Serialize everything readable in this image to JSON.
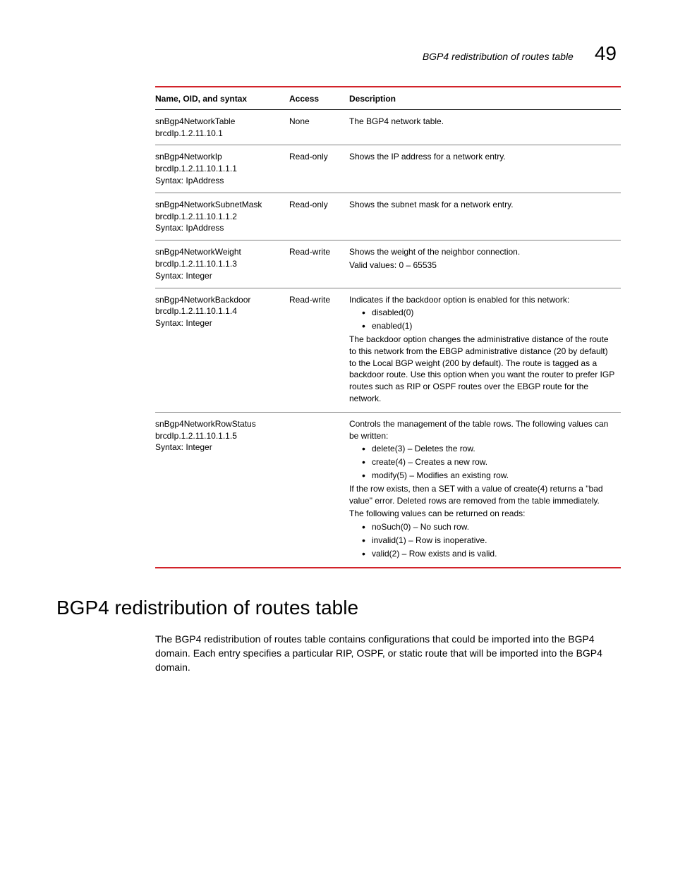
{
  "header": {
    "running_title": "BGP4 redistribution of routes table",
    "page_number": "49"
  },
  "table": {
    "columns": [
      "Name, OID, and syntax",
      "Access",
      "Description"
    ],
    "rows": [
      {
        "name": [
          "snBgp4NetworkTable",
          "brcdIp.1.2.11.10.1"
        ],
        "access": "None",
        "desc": {
          "paras": [
            "The BGP4 network table."
          ]
        }
      },
      {
        "name": [
          "snBgp4NetworkIp",
          "brcdIp.1.2.11.10.1.1.1",
          "Syntax: IpAddress"
        ],
        "access": "Read-only",
        "desc": {
          "paras": [
            "Shows the IP address for a network entry."
          ]
        }
      },
      {
        "name": [
          "snBgp4NetworkSubnetMask",
          "brcdIp.1.2.11.10.1.1.2",
          "Syntax: IpAddress"
        ],
        "access": "Read-only",
        "desc": {
          "paras": [
            "Shows the subnet mask for a network entry."
          ]
        }
      },
      {
        "name": [
          "snBgp4NetworkWeight",
          "brcdIp.1.2.11.10.1.1.3",
          "Syntax: Integer"
        ],
        "access": "Read-write",
        "desc": {
          "paras": [
            "Shows the weight of the neighbor connection.",
            "Valid values: 0 – 65535"
          ]
        }
      },
      {
        "name": [
          "snBgp4NetworkBackdoor",
          "brcdIp.1.2.11.10.1.1.4",
          "Syntax: Integer"
        ],
        "access": "Read-write",
        "desc": {
          "blocks": [
            {
              "type": "p",
              "text": "Indicates if the backdoor option is enabled for this network:"
            },
            {
              "type": "ul",
              "items": [
                "disabled(0)",
                "enabled(1)"
              ]
            },
            {
              "type": "p",
              "text": "The backdoor option changes the administrative distance of the route to this network from the EBGP administrative distance (20 by default) to the Local BGP weight (200 by default). The route is tagged as a backdoor route. Use this option when you want the router to prefer IGP routes such as RIP or OSPF routes over the EBGP route for the network."
            }
          ]
        }
      },
      {
        "name": [
          "snBgp4NetworkRowStatus",
          "brcdIp.1.2.11.10.1.1.5",
          "Syntax: Integer"
        ],
        "access": "",
        "desc": {
          "blocks": [
            {
              "type": "p",
              "text": "Controls the management of the table rows. The following values can be written:"
            },
            {
              "type": "ul",
              "items": [
                "delete(3) – Deletes the row.",
                "create(4) – Creates a new row.",
                "modify(5) – Modifies an existing row."
              ]
            },
            {
              "type": "p",
              "text": "If the row exists, then a SET with a value of create(4) returns a \"bad value\" error. Deleted rows are removed from the table immediately."
            },
            {
              "type": "p",
              "text": "The following values can be returned on reads:"
            },
            {
              "type": "ul",
              "items": [
                "noSuch(0) – No such row.",
                "invalid(1) – Row is inoperative.",
                "valid(2) – Row exists and is valid."
              ]
            }
          ]
        }
      }
    ]
  },
  "section": {
    "heading": "BGP4 redistribution of routes table",
    "body": "The BGP4 redistribution of routes table contains configurations that could be imported into the BGP4 domain. Each entry specifies a particular RIP, OSPF, or static route that will be imported into the BGP4 domain."
  },
  "style": {
    "accent_color": "#d2232a"
  }
}
